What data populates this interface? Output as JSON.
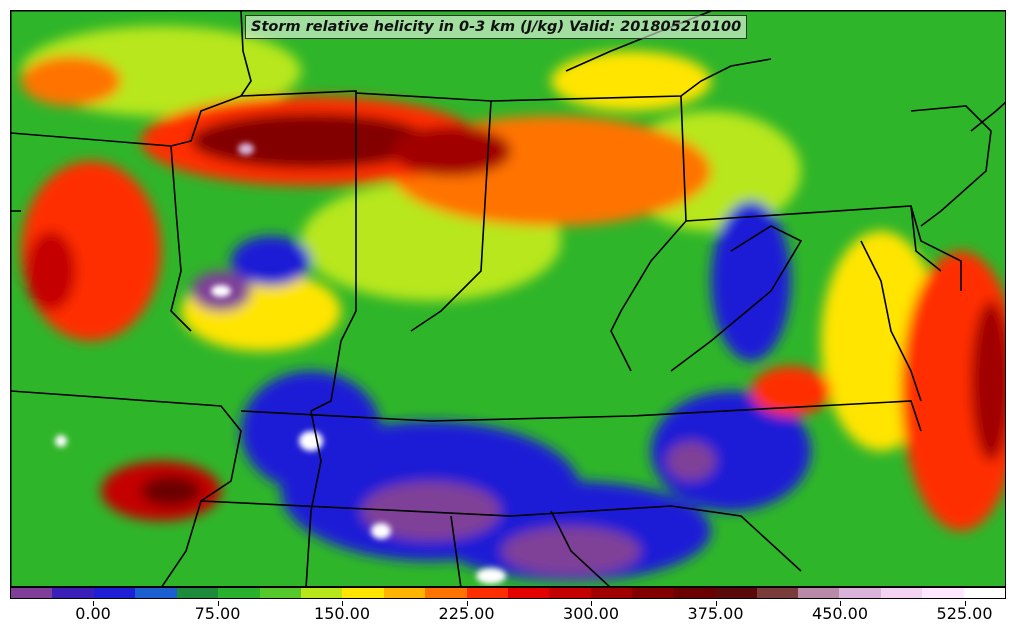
{
  "title": "Storm relative helicity in 0-3 km (J/kg) Valid: 201805210100",
  "legend": {
    "colors": [
      "#7f3f98",
      "#3a1fb8",
      "#1f1fd6",
      "#1c5fd0",
      "#1d8a3c",
      "#29b12e",
      "#55c82c",
      "#b7e71b",
      "#ffe500",
      "#ffb400",
      "#ff7300",
      "#ff2e00",
      "#e50000",
      "#c40000",
      "#a10000",
      "#830000",
      "#6a0000",
      "#5a0a0a",
      "#7a3b3b",
      "#b88aa8",
      "#d9b3d9",
      "#f2d4f2",
      "#ffe8ff",
      "#ffffff"
    ],
    "tick_labels": [
      "0.00",
      "75.00",
      "150.00",
      "225.00",
      "300.00",
      "375.00",
      "450.00",
      "525.00"
    ]
  },
  "map": {
    "background_color": "#2fb52a",
    "boundary_color": "#000000"
  }
}
